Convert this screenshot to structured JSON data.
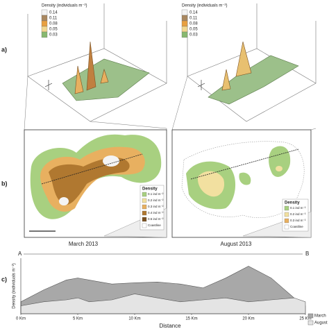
{
  "panel_labels": [
    "a)",
    "b)",
    "c)"
  ],
  "surface_plots": [
    {
      "legend_title": "Density (individuals m⁻²)",
      "legend_values": [
        "0.14",
        "0.11",
        "0.08",
        "0.05",
        "0.03"
      ],
      "legend_colors": [
        "#f4f4f4",
        "#a98860",
        "#e8a040",
        "#f2d890",
        "#88b870"
      ]
    },
    {
      "legend_title": "Density (individuals m⁻²)",
      "legend_values": [
        "0.14",
        "0.11",
        "0.08",
        "0.05",
        "0.03"
      ],
      "legend_colors": [
        "#f4f4f4",
        "#a98860",
        "#e8a040",
        "#f2d890",
        "#88b870"
      ]
    }
  ],
  "maps": [
    {
      "caption": "March 2013",
      "legend_title": "Density",
      "legend_items": [
        {
          "label": "0.1 ind m⁻²",
          "color": "#a8d080"
        },
        {
          "label": "0.2 ind m⁻²",
          "color": "#f2e0a0"
        },
        {
          "label": "0.3 ind m⁻²",
          "color": "#e8b060"
        },
        {
          "label": "0.4 ind m⁻²",
          "color": "#b07830"
        },
        {
          "label": "0.5 ind m⁻²",
          "color": "#7a5020"
        },
        {
          "label": "Coastline",
          "color": "#ffffff"
        }
      ]
    },
    {
      "caption": "August 2013",
      "legend_title": "Density",
      "legend_items": [
        {
          "label": "0.1 ind m⁻²",
          "color": "#a8d080"
        },
        {
          "label": "0.2 ind m⁻²",
          "color": "#f2e0a0"
        },
        {
          "label": "0.3 ind m⁻²",
          "color": "#e8b060"
        },
        {
          "label": "Coastline",
          "color": "#ffffff"
        }
      ]
    }
  ],
  "chart_data": {
    "type": "area",
    "start_label": "A",
    "end_label": "B",
    "x_label": "Distance",
    "y_label": "Density (individuals m⁻²)",
    "x": [
      0,
      2,
      4,
      5,
      6,
      8,
      10,
      12,
      14,
      16,
      18,
      20,
      22,
      24,
      25
    ],
    "series": [
      {
        "name": "March",
        "color": "#a8a8a8",
        "values": [
          0.03,
          0.06,
          0.085,
          0.09,
          0.085,
          0.075,
          0.078,
          0.08,
          0.075,
          0.065,
          0.09,
          0.12,
          0.09,
          0.04,
          0.02
        ]
      },
      {
        "name": "August",
        "color": "#e4e4e4",
        "values": [
          0.02,
          0.03,
          0.035,
          0.04,
          0.03,
          0.035,
          0.05,
          0.04,
          0.03,
          0.035,
          0.04,
          0.03,
          0.035,
          0.04,
          0.03
        ]
      }
    ],
    "xlim": [
      0,
      25
    ],
    "ylim": [
      0,
      0.14
    ],
    "xticks": [
      {
        "value": 0,
        "label": "0 Km"
      },
      {
        "value": 5,
        "label": "5 Km"
      },
      {
        "value": 10,
        "label": "10 Km"
      },
      {
        "value": 15,
        "label": "15 Km"
      },
      {
        "value": 20,
        "label": "20 Km"
      },
      {
        "value": 25,
        "label": "25 Km"
      }
    ]
  }
}
